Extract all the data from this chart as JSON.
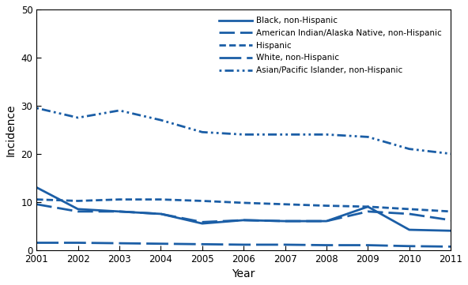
{
  "years": [
    2001,
    2002,
    2003,
    2004,
    2005,
    2006,
    2007,
    2008,
    2009,
    2010,
    2011
  ],
  "black_non_hispanic": [
    13.0,
    8.5,
    8.0,
    7.5,
    5.5,
    6.2,
    6.0,
    6.0,
    9.0,
    4.2,
    4.0
  ],
  "american_indian": [
    9.5,
    8.0,
    8.0,
    7.5,
    5.8,
    6.2,
    6.0,
    6.0,
    8.0,
    7.5,
    6.2
  ],
  "hispanic": [
    10.5,
    10.2,
    10.5,
    10.5,
    10.2,
    9.8,
    9.5,
    9.2,
    9.0,
    8.5,
    8.0
  ],
  "white_non_hispanic": [
    1.5,
    1.5,
    1.4,
    1.3,
    1.2,
    1.1,
    1.1,
    1.0,
    1.0,
    0.8,
    0.7
  ],
  "asian_pacific": [
    29.5,
    27.5,
    29.0,
    27.0,
    24.5,
    24.0,
    24.0,
    24.0,
    23.5,
    21.0,
    20.0
  ],
  "color": "#1B5EA6",
  "xlabel": "Year",
  "ylabel": "Incidence",
  "ylim": [
    0,
    50
  ],
  "legend_labels": [
    "Black, non-Hispanic",
    "American Indian/Alaska Native, non-Hispanic",
    "Hispanic",
    "White, non-Hispanic",
    "Asian/Pacific Islander, non-Hispanic"
  ]
}
